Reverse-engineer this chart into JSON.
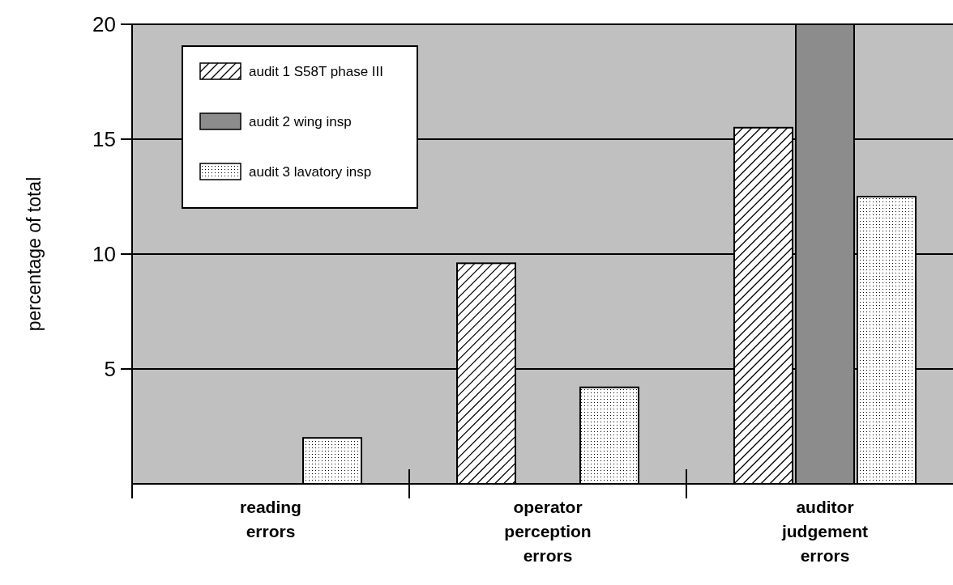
{
  "chart_data": {
    "type": "bar",
    "ylabel": "percentage of total",
    "categories": [
      "reading errors",
      "operator perception errors",
      "auditor judgement errors"
    ],
    "series": [
      {
        "name": "audit 1 S58T phase III",
        "color": "#ffffff",
        "values": [
          null,
          9.6,
          15.5
        ]
      },
      {
        "name": "audit 2 wing insp",
        "color": "#8c8c8c",
        "values": [
          null,
          null,
          20
        ]
      },
      {
        "name": "audit 3 lavatory insp",
        "color": "#ffffff",
        "values": [
          2,
          4.2,
          12.5
        ]
      }
    ],
    "ylim": [
      0,
      20
    ],
    "yticks": [
      5,
      10,
      15,
      20
    ],
    "grid": "y",
    "legend": "top left"
  }
}
